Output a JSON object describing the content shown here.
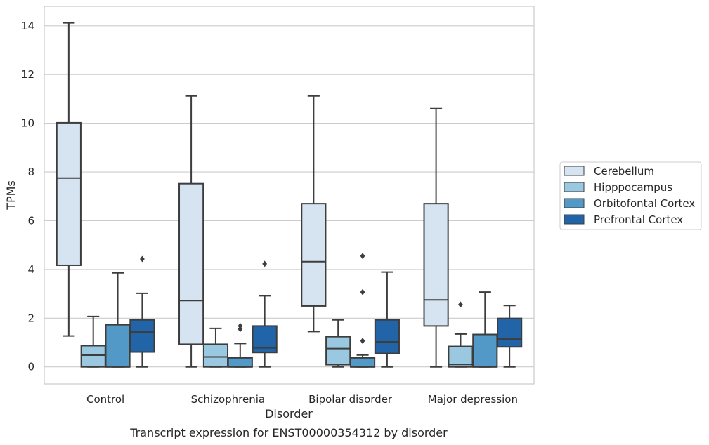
{
  "chart_data": {
    "type": "box",
    "title": "",
    "caption": "Transcript expression for ENST00000354312 by disorder",
    "xlabel": "Disorder",
    "ylabel": "TPMs",
    "ylim": [
      -0.7,
      14.8
    ],
    "yticks": [
      0,
      2,
      4,
      6,
      8,
      10,
      12,
      14
    ],
    "categories": [
      "Control",
      "Schizophrenia",
      "Bipolar disorder",
      "Major depression"
    ],
    "grid": "horizontal",
    "legend_position": "right",
    "series": [
      {
        "name": "Cerebellum",
        "color": "#d6e4f2",
        "boxes": [
          {
            "whisker_low": 1.27,
            "q1": 4.17,
            "median": 7.75,
            "q3": 10.02,
            "whisker_high": 14.12,
            "outliers": []
          },
          {
            "whisker_low": 0.0,
            "q1": 0.93,
            "median": 2.72,
            "q3": 7.52,
            "whisker_high": 11.12,
            "outliers": []
          },
          {
            "whisker_low": 1.45,
            "q1": 2.5,
            "median": 4.32,
            "q3": 6.7,
            "whisker_high": 11.12,
            "outliers": []
          },
          {
            "whisker_low": 0.0,
            "q1": 1.68,
            "median": 2.75,
            "q3": 6.7,
            "whisker_high": 10.6,
            "outliers": []
          }
        ]
      },
      {
        "name": "Hipppocampus",
        "color": "#9ac8e0",
        "boxes": [
          {
            "whisker_low": 0.0,
            "q1": 0.0,
            "median": 0.48,
            "q3": 0.87,
            "whisker_high": 2.07,
            "outliers": []
          },
          {
            "whisker_low": 0.0,
            "q1": 0.0,
            "median": 0.41,
            "q3": 0.93,
            "whisker_high": 1.58,
            "outliers": []
          },
          {
            "whisker_low": 0.0,
            "q1": 0.09,
            "median": 0.75,
            "q3": 1.24,
            "whisker_high": 1.93,
            "outliers": []
          },
          {
            "whisker_low": 0.0,
            "q1": 0.0,
            "median": 0.1,
            "q3": 0.84,
            "whisker_high": 1.35,
            "outliers": [
              2.56
            ]
          }
        ]
      },
      {
        "name": "Orbitofontal Cortex",
        "color": "#5299c7",
        "boxes": [
          {
            "whisker_low": 0.0,
            "q1": 0.0,
            "median": 0.0,
            "q3": 1.73,
            "whisker_high": 3.86,
            "outliers": []
          },
          {
            "whisker_low": 0.0,
            "q1": 0.0,
            "median": 0.0,
            "q3": 0.37,
            "whisker_high": 0.96,
            "outliers": [
              1.55,
              1.68
            ]
          },
          {
            "whisker_low": 0.0,
            "q1": 0.0,
            "median": 0.0,
            "q3": 0.37,
            "whisker_high": 0.49,
            "outliers": [
              1.07,
              3.07,
              4.55
            ]
          },
          {
            "whisker_low": 0.0,
            "q1": 0.0,
            "median": 0.0,
            "q3": 1.33,
            "whisker_high": 3.07,
            "outliers": []
          }
        ]
      },
      {
        "name": "Prefrontal Cortex",
        "color": "#2165a8",
        "boxes": [
          {
            "whisker_low": 0.0,
            "q1": 0.61,
            "median": 1.43,
            "q3": 1.93,
            "whisker_high": 3.02,
            "outliers": [
              4.43
            ]
          },
          {
            "whisker_low": 0.0,
            "q1": 0.59,
            "median": 0.78,
            "q3": 1.68,
            "whisker_high": 2.92,
            "outliers": [
              4.23
            ]
          },
          {
            "whisker_low": 0.0,
            "q1": 0.55,
            "median": 1.03,
            "q3": 1.93,
            "whisker_high": 3.89,
            "outliers": []
          },
          {
            "whisker_low": 0.0,
            "q1": 0.82,
            "median": 1.14,
            "q3": 1.99,
            "whisker_high": 2.52,
            "outliers": []
          }
        ]
      }
    ]
  }
}
